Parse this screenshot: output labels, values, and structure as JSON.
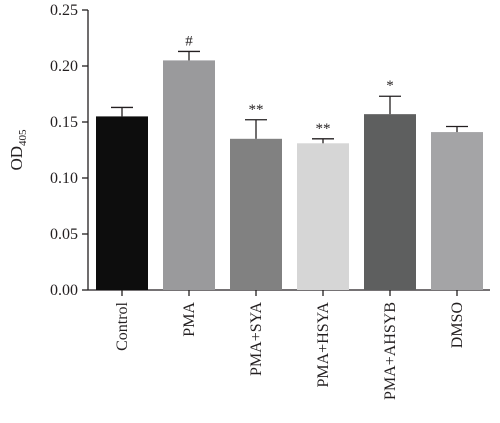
{
  "chart_data": {
    "type": "bar",
    "ylabel": "OD",
    "ylabel_subscript": "405",
    "xlabel": "",
    "ylim": [
      0,
      0.25
    ],
    "yticks": [
      "0.00",
      "0.05",
      "0.10",
      "0.15",
      "0.20",
      "0.25"
    ],
    "categories": [
      "Control",
      "PMA",
      "PMA+SYA",
      "PMA+HSYA",
      "PMA+AHSYB",
      "DMSO"
    ],
    "values": [
      0.155,
      0.205,
      0.135,
      0.131,
      0.157,
      0.141
    ],
    "errors": [
      0.008,
      0.008,
      0.017,
      0.004,
      0.016,
      0.005
    ],
    "annotations": [
      "",
      "#",
      "**",
      "**",
      "*",
      ""
    ],
    "colors": [
      "#0d0d0d",
      "#9a9a9c",
      "#818181",
      "#d6d6d6",
      "#5e5f5f",
      "#a4a4a6"
    ],
    "grid": false,
    "legend": "none"
  }
}
